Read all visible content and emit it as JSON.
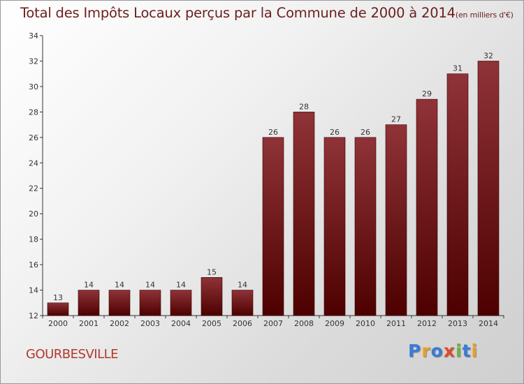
{
  "header": {
    "title": "Total des Impôts Locaux perçus par la Commune de 2000 à 2014",
    "unit": "(en milliers d'€)"
  },
  "footer": {
    "commune": "GOURBESVILLE",
    "logo_text": "Proxiti"
  },
  "colors": {
    "bar_top": "#8f3338",
    "bar_bottom": "#4d0000",
    "axis": "#333333"
  },
  "chart_data": {
    "type": "bar",
    "title": "Total des Impôts Locaux perçus par la Commune de 2000 à 2014",
    "xlabel": "",
    "ylabel": "",
    "categories": [
      "2000",
      "2001",
      "2002",
      "2003",
      "2004",
      "2005",
      "2006",
      "2007",
      "2008",
      "2009",
      "2010",
      "2011",
      "2012",
      "2013",
      "2014"
    ],
    "values": [
      13,
      14,
      14,
      14,
      14,
      15,
      14,
      26,
      28,
      26,
      26,
      27,
      29,
      31,
      32
    ],
    "ylim": [
      12,
      34
    ],
    "yticks": [
      12,
      14,
      16,
      18,
      20,
      22,
      24,
      26,
      28,
      30,
      32,
      34
    ],
    "grid": false,
    "legend": "none"
  }
}
